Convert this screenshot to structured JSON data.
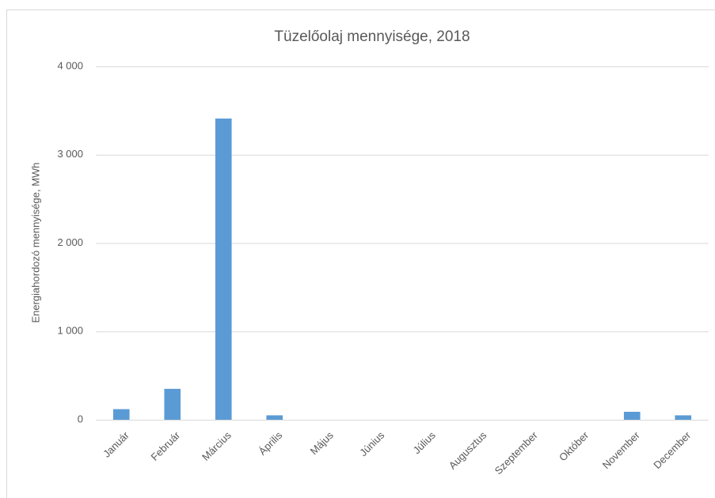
{
  "chart_data": {
    "type": "bar",
    "title": "Tüzelőolaj mennyisége, 2018",
    "y_label": "Energiahordozó mennyisége, MWh",
    "categories": [
      "Január",
      "Február",
      "Március",
      "Április",
      "Május",
      "Június",
      "Július",
      "Augusztus",
      "Szeptember",
      "Október",
      "November",
      "December"
    ],
    "values": [
      120,
      350,
      3410,
      50,
      0,
      0,
      0,
      0,
      0,
      0,
      90,
      50
    ],
    "color": "#5b9bd5",
    "ylim": [
      0,
      4000
    ],
    "yticks": [
      0,
      {
        "value": 1000,
        "label": "1 000"
      },
      {
        "value": 2000,
        "label": "2 000"
      },
      {
        "value": 3000,
        "label": "3 000"
      },
      {
        "value": 4000,
        "label": "4 000"
      }
    ],
    "grid": true
  }
}
